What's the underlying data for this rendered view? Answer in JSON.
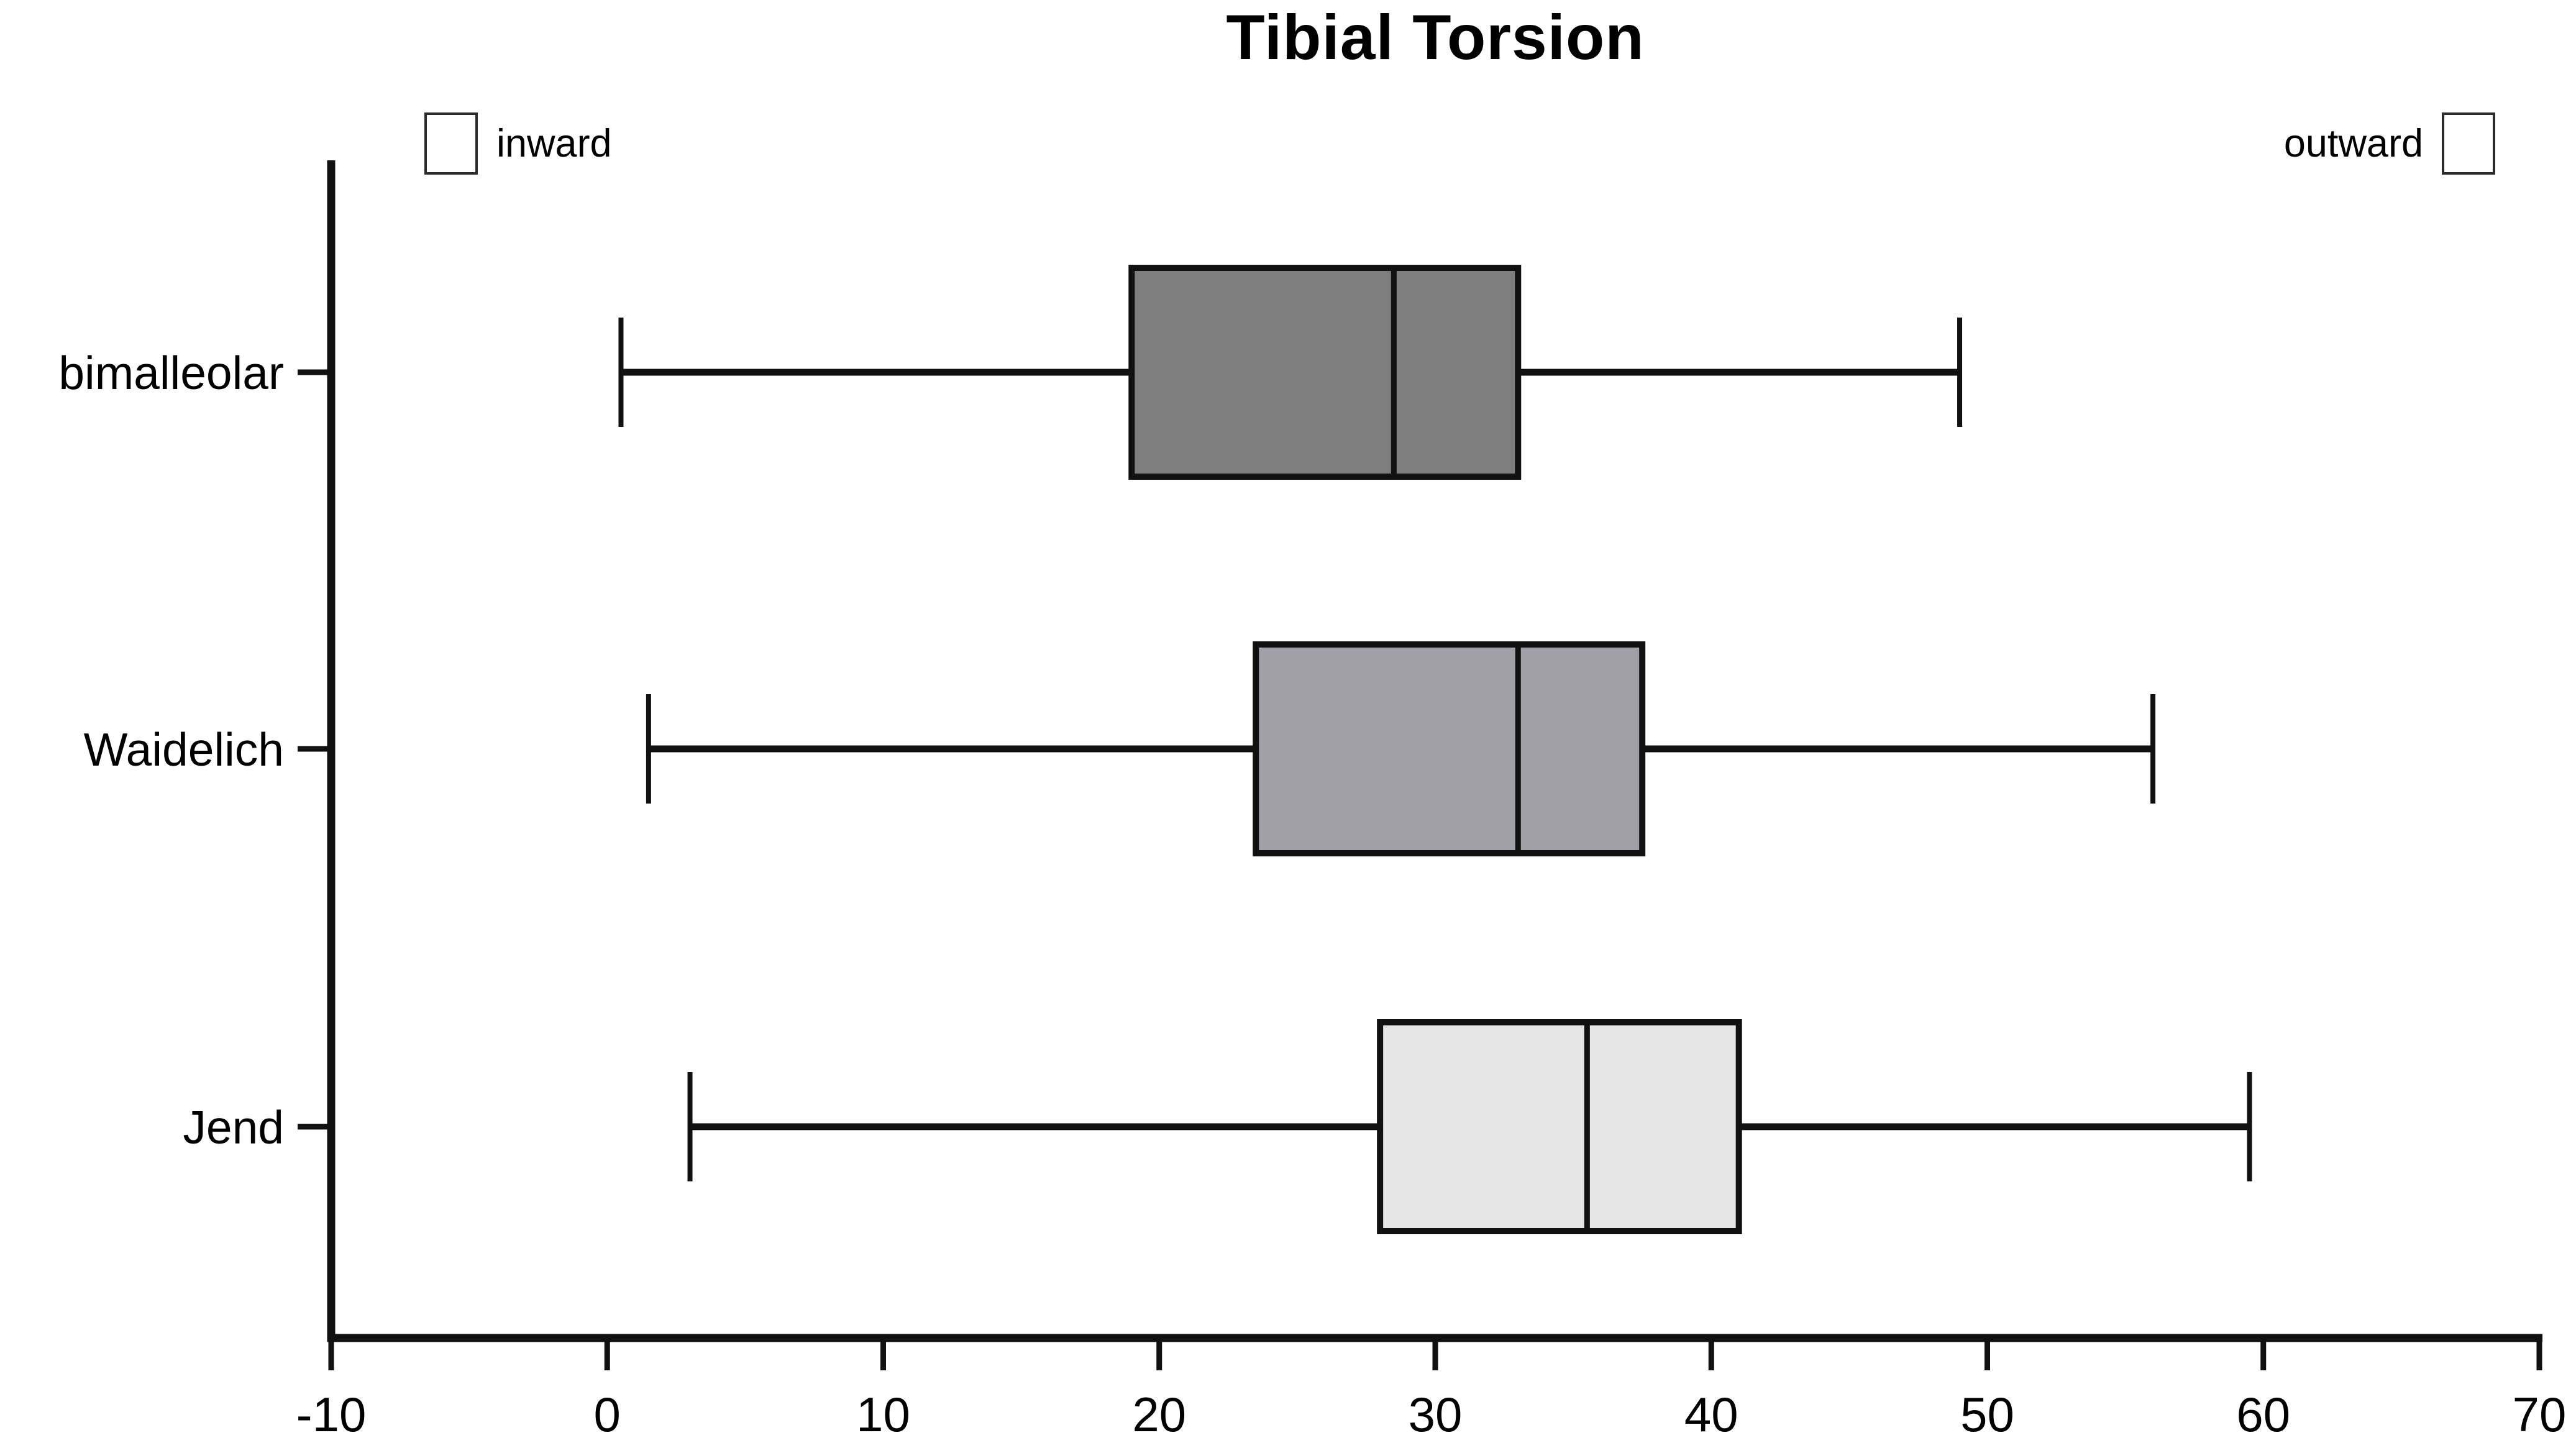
{
  "figure": {
    "title": "Tibial Torsion",
    "legend": {
      "inward_label": "inward",
      "outward_label": "outward"
    }
  },
  "chart_data": {
    "type": "boxplot",
    "orientation": "horizontal",
    "title": "Tibial Torsion",
    "categories": [
      "bimalleolar",
      "Waidelich",
      "Jend"
    ],
    "series": [
      {
        "name": "bimalleolar",
        "min": 0.5,
        "q1": 19,
        "median": 28.5,
        "q3": 33,
        "max": 49,
        "fill": "#7e7e7e"
      },
      {
        "name": "Waidelich",
        "min": 1.5,
        "q1": 23.5,
        "median": 33,
        "q3": 37.5,
        "max": 56,
        "fill": "#a0a0a6"
      },
      {
        "name": "Jend",
        "min": 3,
        "q1": 28,
        "median": 35.5,
        "q3": 41,
        "max": 59.5,
        "fill": "#e6e6e6"
      }
    ],
    "xlim": [
      -10,
      70
    ],
    "xticks": [
      -10,
      0,
      10,
      20,
      30,
      40,
      50,
      60,
      70
    ],
    "xlabel": "",
    "ylabel": "",
    "grid": false,
    "annotations": [
      {
        "text": "inward",
        "position": "top-left"
      },
      {
        "text": "outward",
        "position": "top-right"
      }
    ],
    "axis_color": "#111111",
    "box_border_color": "#111111"
  }
}
